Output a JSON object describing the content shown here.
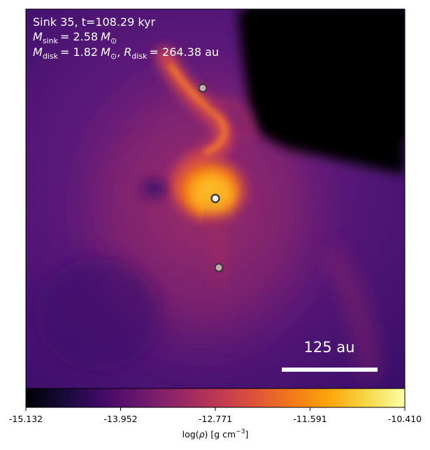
{
  "panel": {
    "title": "Sink 35, t=108.29 kyr",
    "sink_mass": {
      "symbol": "M",
      "subscript": "sink",
      "value": "= 2.58",
      "unit_symbol": "M",
      "unit_sub": "⊙"
    },
    "disk_line": {
      "mass_symbol": "M",
      "mass_sub": "disk",
      "mass_value": "= 1.82",
      "mass_unit": "M",
      "mass_unit_sub": "⊙",
      "radius_symbol": "R",
      "radius_sub": "disk",
      "radius_value": "= 264.38 au"
    },
    "scale_bar_label": "125 au"
  },
  "colorbar": {
    "colormap": "inferno",
    "ticks": [
      "-15.132",
      "-13.952",
      "-12.771",
      "-11.591",
      "-10.410"
    ],
    "label_prefix": "log(",
    "label_rho": "ρ",
    "label_mid": ") [g cm",
    "label_exp": "−3",
    "label_suffix": "]"
  },
  "sinks": [
    {
      "name": "sink-upper",
      "color": "#c8a8b4"
    },
    {
      "name": "sink-central",
      "color": "#f3eaea"
    },
    {
      "name": "sink-lower",
      "color": "#c8a8b4"
    }
  ],
  "colors": {
    "void": "#000004",
    "background": "#3b0f70",
    "envelope": "#8c2981",
    "filament": "#de4968",
    "core": "#fb9b06",
    "hot": "#fcffa4"
  }
}
